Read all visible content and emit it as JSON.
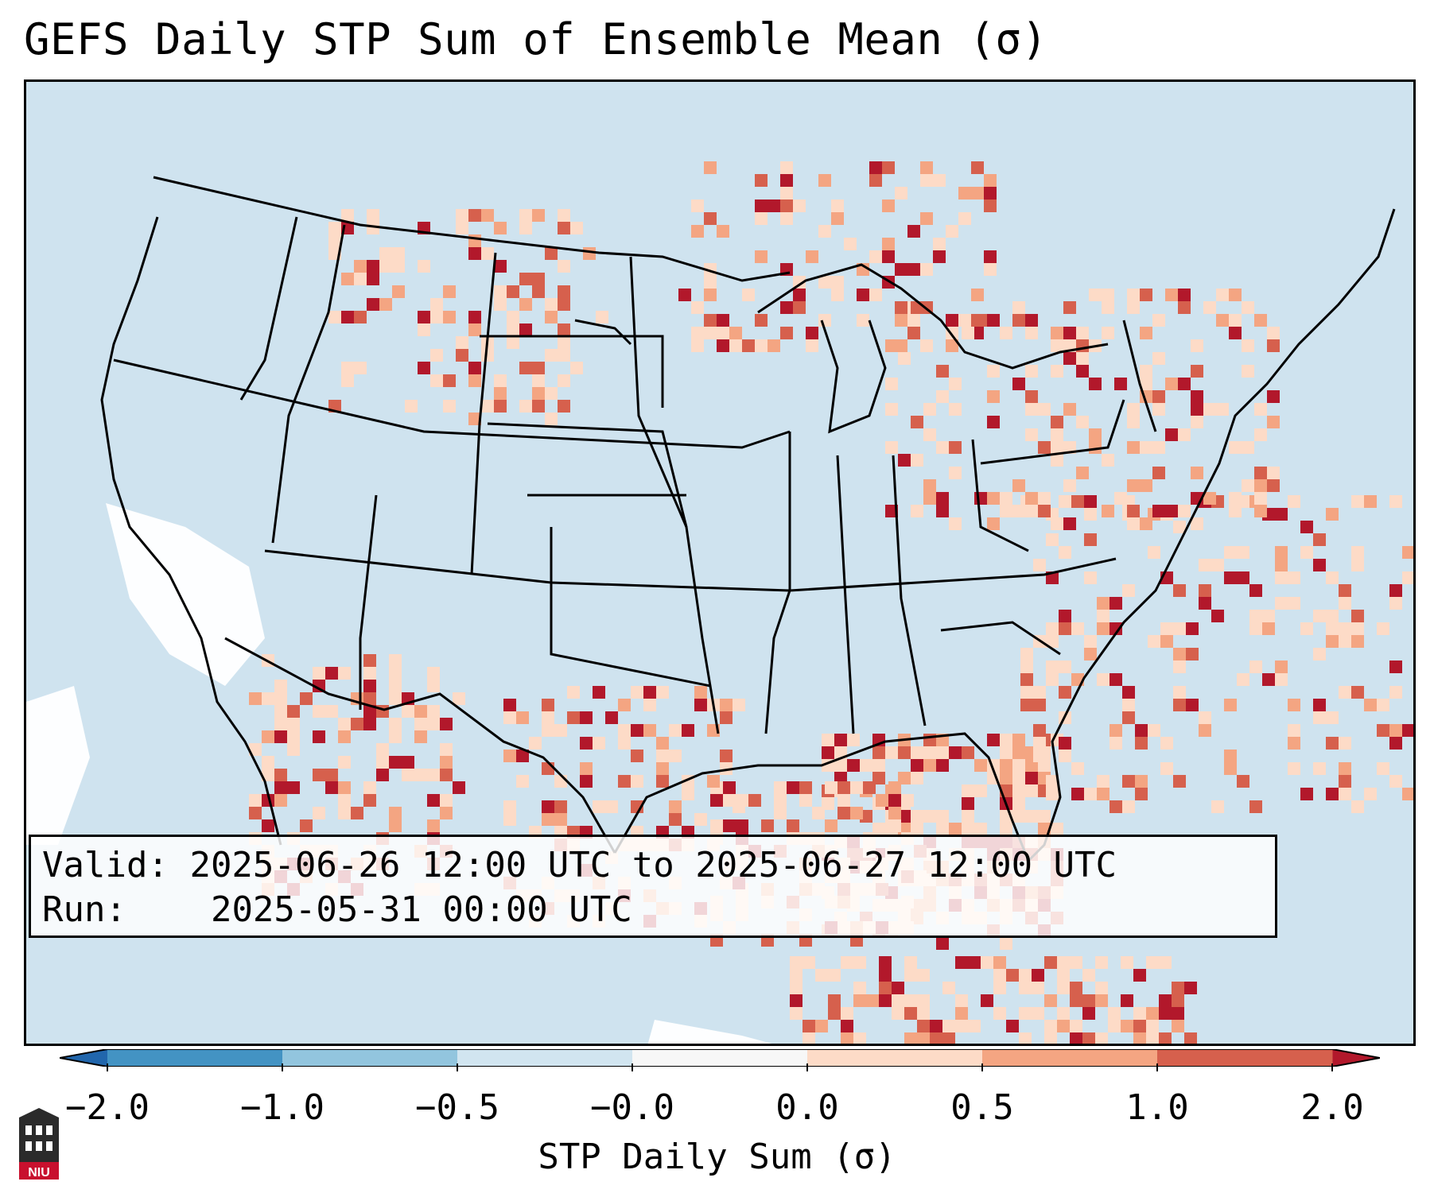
{
  "title": "GEFS Daily STP Sum of Ensemble Mean (σ)",
  "map": {
    "region": "Continental United States",
    "background_color": "#cfe3ef",
    "border_color": "#000000"
  },
  "info": {
    "valid_label": "Valid:",
    "valid_value": "2025-06-26 12:00 UTC to 2025-06-27 12:00 UTC",
    "run_label": "Run:",
    "run_value": "2025-05-31 00:00 UTC"
  },
  "colorbar": {
    "label": "STP Daily Sum (σ)",
    "ticks": [
      "−2.0",
      "−1.0",
      "−0.5",
      "−0.0",
      "0.0",
      "0.5",
      "1.0",
      "2.0"
    ],
    "colors": [
      "#2166ac",
      "#4393c3",
      "#92c5de",
      "#d1e5f0",
      "#f7f7f7",
      "#fddbc7",
      "#f4a582",
      "#d6604d",
      "#b2182b"
    ]
  },
  "logo": {
    "text": "NIU",
    "icon": "university-building-icon",
    "color": "#c8102e"
  }
}
